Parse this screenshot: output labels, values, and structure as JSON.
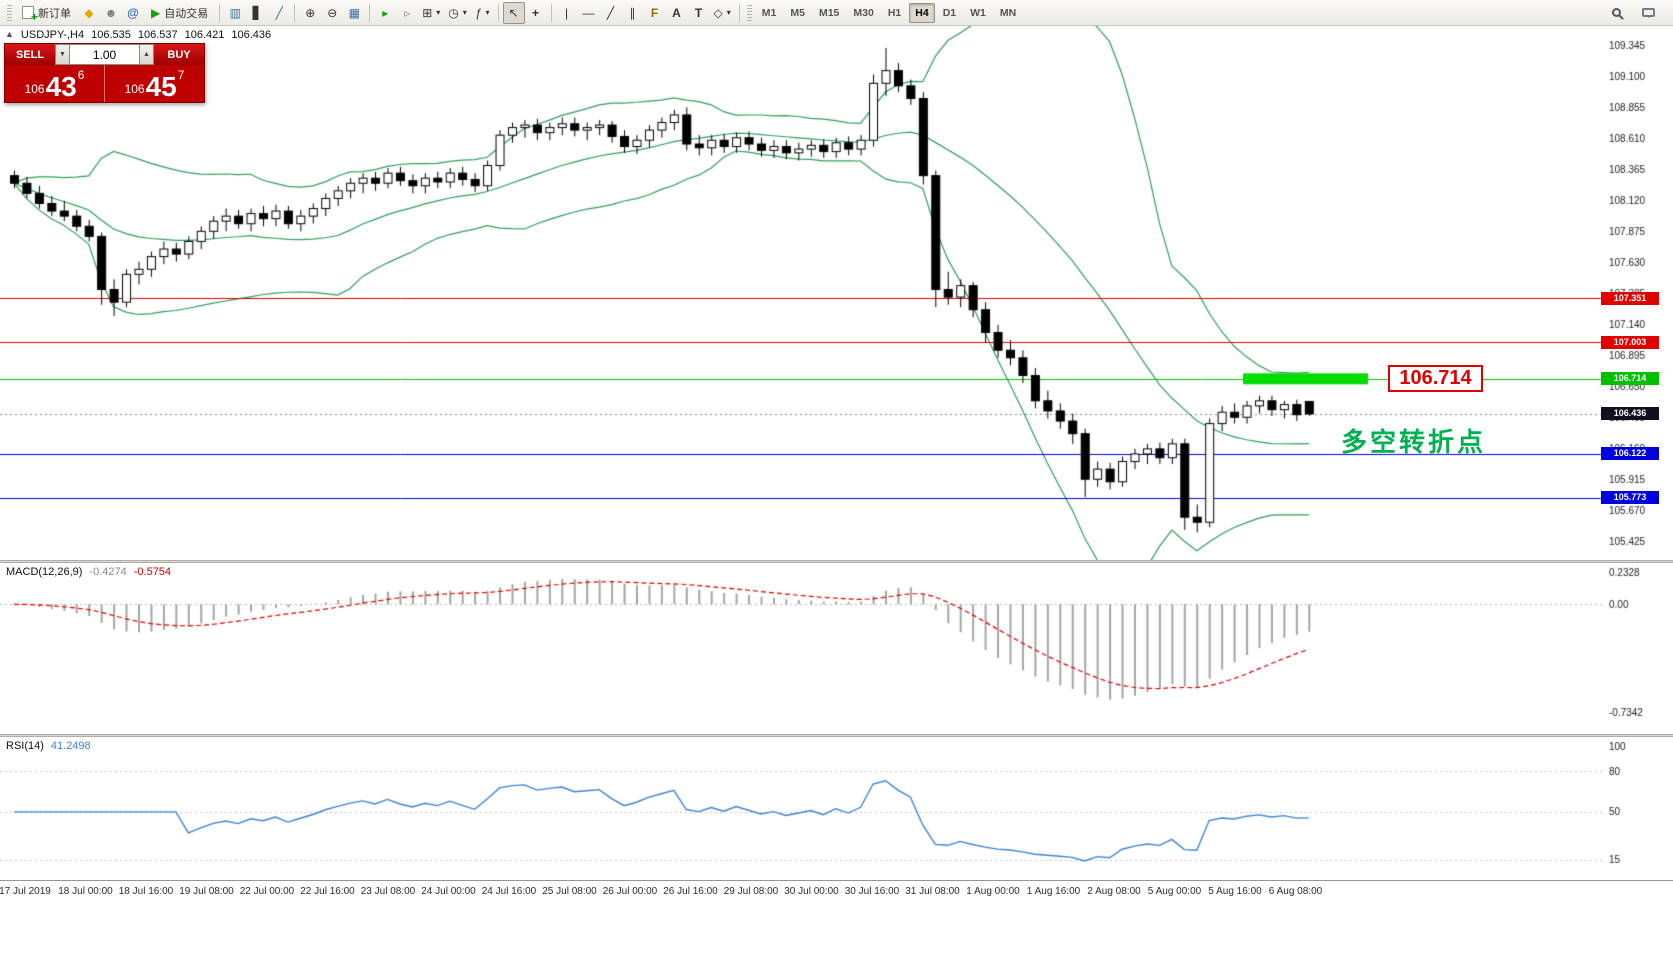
{
  "toolbar": {
    "new_order_label": "新订单",
    "autotrading_label": "自动交易",
    "text_tool_label": "A",
    "label_tool_label": "T",
    "timeframes": [
      "M1",
      "M5",
      "M15",
      "M30",
      "H1",
      "H4",
      "D1",
      "W1",
      "MN"
    ],
    "active_timeframe": "H4"
  },
  "symbol_header": {
    "marker": "▲",
    "symbol_period": "USDJPY-,H4",
    "open": "106.535",
    "high": "106.537",
    "low": "106.421",
    "close": "106.436"
  },
  "trade_panel": {
    "sell_label": "SELL",
    "buy_label": "BUY",
    "volume": "1.00",
    "sell_price_prefix": "106",
    "sell_price_big": "43",
    "sell_price_sup": "6",
    "buy_price_prefix": "106",
    "buy_price_big": "45",
    "buy_price_sup": "7"
  },
  "indicators": {
    "macd_label": "MACD(12,26,9)",
    "macd_value": "-0.4274",
    "macd_signal_value": "-0.5754",
    "rsi_label": "RSI(14)",
    "rsi_value": "41.2498"
  },
  "annotations": {
    "turning_point_text": "多空转折点",
    "highlight_price_label": "106.714"
  },
  "chart_data": {
    "type": "candlestick",
    "symbol": "USDJPY-",
    "period": "H4",
    "title": "USDJPY-,H4 106.535 106.537 106.421 106.436",
    "price_axis": {
      "min": 105.425,
      "max": 109.345,
      "step": 0.245
    },
    "bollinger": {
      "period": 20,
      "deviation": 2,
      "color": "#2e9e5b"
    },
    "horizontal_lines": [
      {
        "value": 107.351,
        "label": "107.351",
        "color": "#e00000"
      },
      {
        "value": 107.003,
        "label": "107.003",
        "color": "#e00000"
      },
      {
        "value": 106.714,
        "label": "106.714",
        "color": "#00c000"
      },
      {
        "value": 106.122,
        "label": "106.122",
        "color": "#0000dd"
      },
      {
        "value": 105.773,
        "label": "105.773",
        "color": "#0000dd"
      }
    ],
    "current_price": {
      "value": 106.436,
      "label": "106.436",
      "color": "#101020"
    },
    "highlight_segment": {
      "price": 106.714,
      "color": "#00dc00"
    },
    "macd": {
      "fast": 12,
      "slow": 26,
      "signal": 9,
      "value": -0.4274,
      "signal_value": -0.5754,
      "axis_values": [
        0.2328,
        0,
        -0.7342
      ],
      "axis_labels": [
        "0.2328",
        "0.00",
        "-0.7342"
      ],
      "range_max": 0.28,
      "range_min": -0.88
    },
    "rsi": {
      "period": 14,
      "value": 41.2498,
      "axis_values": [
        100,
        80,
        50,
        15
      ],
      "axis_labels": [
        "100",
        "80",
        "50",
        "15"
      ],
      "levels": [
        80,
        50,
        15
      ],
      "range": [
        0,
        105
      ]
    },
    "time_labels": [
      "17 Jul 2019",
      "18 Jul 00:00",
      "18 Jul 16:00",
      "19 Jul 08:00",
      "22 Jul 00:00",
      "22 Jul 16:00",
      "23 Jul 08:00",
      "24 Jul 00:00",
      "24 Jul 16:00",
      "25 Jul 08:00",
      "26 Jul 00:00",
      "26 Jul 16:00",
      "29 Jul 08:00",
      "30 Jul 00:00",
      "30 Jul 16:00",
      "31 Jul 08:00",
      "1 Aug 00:00",
      "1 Aug 16:00",
      "2 Aug 08:00",
      "5 Aug 00:00",
      "5 Aug 16:00",
      "6 Aug 08:00"
    ],
    "candles_ohlc": [
      [
        108.32,
        108.36,
        108.22,
        108.26
      ],
      [
        108.26,
        108.31,
        108.14,
        108.18
      ],
      [
        108.18,
        108.24,
        108.06,
        108.1
      ],
      [
        108.1,
        108.16,
        108.0,
        108.04
      ],
      [
        108.04,
        108.12,
        107.96,
        108.0
      ],
      [
        108.0,
        108.05,
        107.88,
        107.92
      ],
      [
        107.92,
        107.97,
        107.8,
        107.84
      ],
      [
        107.84,
        107.87,
        107.3,
        107.42
      ],
      [
        107.42,
        107.5,
        107.21,
        107.32
      ],
      [
        107.32,
        107.58,
        107.28,
        107.54
      ],
      [
        107.54,
        107.64,
        107.46,
        107.58
      ],
      [
        107.58,
        107.72,
        107.52,
        107.68
      ],
      [
        107.68,
        107.8,
        107.62,
        107.74
      ],
      [
        107.74,
        107.79,
        107.64,
        107.7
      ],
      [
        107.7,
        107.84,
        107.66,
        107.8
      ],
      [
        107.8,
        107.92,
        107.74,
        107.88
      ],
      [
        107.88,
        108.0,
        107.82,
        107.96
      ],
      [
        107.96,
        108.06,
        107.88,
        108.0
      ],
      [
        108.0,
        108.05,
        107.9,
        107.94
      ],
      [
        107.94,
        108.06,
        107.88,
        108.02
      ],
      [
        108.02,
        108.08,
        107.92,
        107.98
      ],
      [
        107.98,
        108.09,
        107.92,
        108.04
      ],
      [
        108.04,
        108.08,
        107.9,
        107.94
      ],
      [
        107.94,
        108.05,
        107.88,
        108.0
      ],
      [
        108.0,
        108.1,
        107.94,
        108.06
      ],
      [
        108.06,
        108.18,
        108.0,
        108.14
      ],
      [
        108.14,
        108.24,
        108.08,
        108.2
      ],
      [
        108.2,
        108.3,
        108.14,
        108.26
      ],
      [
        108.26,
        108.34,
        108.18,
        108.3
      ],
      [
        108.3,
        108.35,
        108.2,
        108.26
      ],
      [
        108.26,
        108.38,
        108.22,
        108.34
      ],
      [
        108.34,
        108.39,
        108.24,
        108.28
      ],
      [
        108.28,
        108.33,
        108.18,
        108.24
      ],
      [
        108.24,
        108.34,
        108.18,
        108.3
      ],
      [
        108.3,
        108.35,
        108.22,
        108.27
      ],
      [
        108.27,
        108.38,
        108.22,
        108.34
      ],
      [
        108.34,
        108.39,
        108.24,
        108.29
      ],
      [
        108.29,
        108.34,
        108.19,
        108.24
      ],
      [
        108.24,
        108.44,
        108.2,
        108.4
      ],
      [
        108.4,
        108.68,
        108.36,
        108.64
      ],
      [
        108.64,
        108.74,
        108.58,
        108.7
      ],
      [
        108.7,
        108.76,
        108.62,
        108.72
      ],
      [
        108.72,
        108.77,
        108.6,
        108.66
      ],
      [
        108.66,
        108.74,
        108.6,
        108.7
      ],
      [
        108.7,
        108.78,
        108.64,
        108.73
      ],
      [
        108.73,
        108.78,
        108.63,
        108.68
      ],
      [
        108.68,
        108.74,
        108.6,
        108.7
      ],
      [
        108.7,
        108.76,
        108.64,
        108.72
      ],
      [
        108.72,
        108.75,
        108.58,
        108.63
      ],
      [
        108.63,
        108.68,
        108.5,
        108.55
      ],
      [
        108.55,
        108.64,
        108.49,
        108.6
      ],
      [
        108.6,
        108.72,
        108.54,
        108.68
      ],
      [
        108.68,
        108.78,
        108.62,
        108.74
      ],
      [
        108.74,
        108.84,
        108.68,
        108.8
      ],
      [
        108.8,
        108.86,
        108.52,
        108.57
      ],
      [
        108.57,
        108.64,
        108.48,
        108.54
      ],
      [
        108.54,
        108.64,
        108.48,
        108.6
      ],
      [
        108.6,
        108.65,
        108.5,
        108.55
      ],
      [
        108.55,
        108.66,
        108.5,
        108.62
      ],
      [
        108.62,
        108.67,
        108.52,
        108.57
      ],
      [
        108.57,
        108.62,
        108.47,
        108.52
      ],
      [
        108.52,
        108.6,
        108.46,
        108.55
      ],
      [
        108.55,
        108.6,
        108.45,
        108.5
      ],
      [
        108.5,
        108.58,
        108.44,
        108.53
      ],
      [
        108.53,
        108.6,
        108.47,
        108.56
      ],
      [
        108.56,
        108.61,
        108.46,
        108.51
      ],
      [
        108.51,
        108.62,
        108.46,
        108.58
      ],
      [
        108.58,
        108.63,
        108.48,
        108.53
      ],
      [
        108.53,
        108.64,
        108.48,
        108.6
      ],
      [
        108.6,
        109.12,
        108.55,
        109.05
      ],
      [
        109.05,
        109.33,
        108.95,
        109.15
      ],
      [
        109.15,
        109.21,
        108.98,
        109.03
      ],
      [
        109.03,
        109.08,
        108.88,
        108.93
      ],
      [
        108.93,
        108.98,
        108.25,
        108.32
      ],
      [
        108.32,
        108.36,
        107.28,
        107.42
      ],
      [
        107.42,
        107.56,
        107.3,
        107.36
      ],
      [
        107.36,
        107.5,
        107.28,
        107.45
      ],
      [
        107.45,
        107.48,
        107.2,
        107.26
      ],
      [
        107.26,
        107.32,
        107.0,
        107.08
      ],
      [
        107.08,
        107.14,
        106.88,
        106.94
      ],
      [
        106.94,
        107.02,
        106.82,
        106.88
      ],
      [
        106.88,
        106.94,
        106.68,
        106.74
      ],
      [
        106.74,
        106.8,
        106.48,
        106.54
      ],
      [
        106.54,
        106.62,
        106.4,
        106.46
      ],
      [
        106.46,
        106.52,
        106.32,
        106.38
      ],
      [
        106.38,
        106.44,
        106.2,
        106.28
      ],
      [
        106.28,
        106.32,
        105.78,
        105.92
      ],
      [
        105.92,
        106.06,
        105.86,
        106.0
      ],
      [
        106.0,
        106.05,
        105.84,
        105.9
      ],
      [
        105.9,
        106.1,
        105.86,
        106.06
      ],
      [
        106.06,
        106.16,
        106.0,
        106.12
      ],
      [
        106.12,
        106.2,
        106.04,
        106.16
      ],
      [
        106.16,
        106.21,
        106.04,
        106.09
      ],
      [
        106.09,
        106.24,
        106.04,
        106.2
      ],
      [
        106.2,
        106.24,
        105.52,
        105.62
      ],
      [
        105.62,
        105.72,
        105.5,
        105.58
      ],
      [
        105.58,
        106.4,
        105.54,
        106.36
      ],
      [
        106.36,
        106.5,
        106.3,
        106.45
      ],
      [
        106.45,
        106.52,
        106.36,
        106.41
      ],
      [
        106.41,
        106.54,
        106.36,
        106.5
      ],
      [
        106.5,
        106.58,
        106.44,
        106.54
      ],
      [
        106.54,
        106.58,
        106.42,
        106.47
      ],
      [
        106.47,
        106.54,
        106.4,
        106.51
      ],
      [
        106.51,
        106.55,
        106.38,
        106.43
      ],
      [
        106.535,
        106.537,
        106.421,
        106.436
      ]
    ]
  }
}
